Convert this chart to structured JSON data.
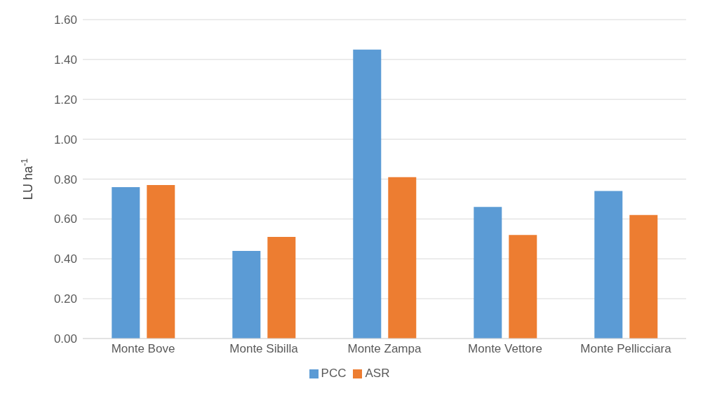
{
  "chart_data": {
    "type": "bar",
    "categories": [
      "Monte Bove",
      "Monte Sibilla",
      "Monte Zampa",
      "Monte Vettore",
      "Monte Pellicciara"
    ],
    "ylabel": "LU ha$^{-1}$",
    "series": [
      {
        "name": "PCC",
        "color": "#5b9bd5",
        "values": [
          0.76,
          0.44,
          1.45,
          0.66,
          0.74
        ]
      },
      {
        "name": "ASR",
        "color": "#ed7d31",
        "values": [
          0.77,
          0.51,
          0.81,
          0.52,
          0.62
        ]
      }
    ],
    "ylim": [
      0,
      1.6
    ],
    "yticks": [
      {
        "value": 0,
        "label": "0.00"
      },
      {
        "value": 0.2,
        "label": "0.20"
      },
      {
        "value": 0.4,
        "label": "0.40"
      },
      {
        "value": 0.6,
        "label": "0.60"
      },
      {
        "value": 0.8,
        "label": "0.80"
      },
      {
        "value": 1,
        "label": "1.00"
      },
      {
        "value": 1.2,
        "label": "1.20"
      },
      {
        "value": 1.4,
        "label": "1.40"
      },
      {
        "value": 1.6,
        "label": "1.60"
      }
    ],
    "grid": "y",
    "legend": "bottom"
  }
}
